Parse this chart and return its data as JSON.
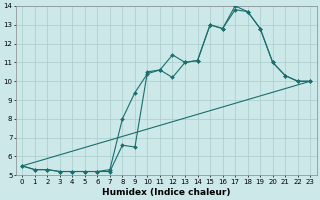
{
  "xlabel": "Humidex (Indice chaleur)",
  "bg_color": "#cce8e8",
  "grid_color": "#aacccc",
  "line_color": "#1a6e6e",
  "xlim": [
    -0.5,
    23.5
  ],
  "ylim": [
    5,
    14
  ],
  "xticks": [
    0,
    1,
    2,
    3,
    4,
    5,
    6,
    7,
    8,
    9,
    10,
    11,
    12,
    13,
    14,
    15,
    16,
    17,
    18,
    19,
    20,
    21,
    22,
    23
  ],
  "yticks": [
    5,
    6,
    7,
    8,
    9,
    10,
    11,
    12,
    13,
    14
  ],
  "line1_x": [
    0,
    1,
    2,
    3,
    4,
    5,
    6,
    7,
    8,
    9,
    10,
    11,
    12,
    13,
    14,
    15,
    16,
    17,
    18,
    19,
    20,
    21,
    22,
    23
  ],
  "line1_y": [
    5.5,
    5.3,
    5.3,
    5.2,
    5.2,
    5.2,
    5.2,
    5.3,
    8.0,
    9.4,
    10.4,
    10.6,
    10.2,
    11.0,
    11.1,
    13.0,
    12.8,
    14.0,
    13.7,
    12.8,
    11.0,
    10.3,
    10.0,
    10.0
  ],
  "line2_x": [
    0,
    1,
    2,
    3,
    4,
    5,
    6,
    7,
    8,
    9,
    10,
    11,
    12,
    13,
    14,
    15,
    16,
    17,
    18,
    19,
    20,
    21,
    22,
    23
  ],
  "line2_y": [
    5.5,
    5.3,
    5.3,
    5.2,
    5.2,
    5.2,
    5.2,
    5.2,
    6.6,
    6.5,
    10.5,
    10.6,
    11.4,
    11.0,
    11.1,
    13.0,
    12.8,
    13.8,
    13.7,
    12.8,
    11.0,
    10.3,
    10.0,
    10.0
  ],
  "line3_x": [
    0,
    23
  ],
  "line3_y": [
    5.5,
    10.0
  ]
}
